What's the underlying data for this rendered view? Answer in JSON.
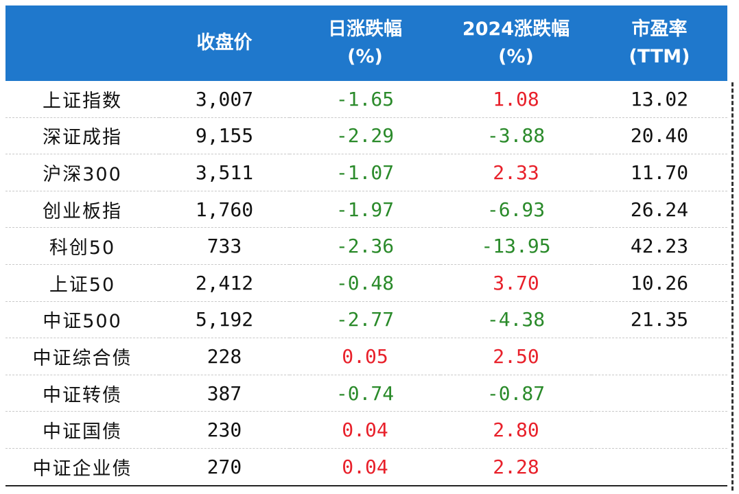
{
  "table": {
    "headers": [
      {
        "line1": "",
        "line2": ""
      },
      {
        "line1": "收盘价",
        "line2": ""
      },
      {
        "line1": "日涨跌幅",
        "line2": "(%)"
      },
      {
        "line1": "2024涨跌幅",
        "line2": "(%)"
      },
      {
        "line1": "市盈率",
        "line2": "(TTM)"
      }
    ],
    "rows": [
      {
        "name": "上证指数",
        "close": "3,007",
        "day_change": "-1.65",
        "ytd_change": "1.08",
        "pe": "13.02"
      },
      {
        "name": "深证成指",
        "close": "9,155",
        "day_change": "-2.29",
        "ytd_change": "-3.88",
        "pe": "20.40"
      },
      {
        "name": "沪深300",
        "close": "3,511",
        "day_change": "-1.07",
        "ytd_change": "2.33",
        "pe": "11.70"
      },
      {
        "name": "创业板指",
        "close": "1,760",
        "day_change": "-1.97",
        "ytd_change": "-6.93",
        "pe": "26.24"
      },
      {
        "name": "科创50",
        "close": "733",
        "day_change": "-2.36",
        "ytd_change": "-13.95",
        "pe": "42.23"
      },
      {
        "name": "上证50",
        "close": "2,412",
        "day_change": "-0.48",
        "ytd_change": "3.70",
        "pe": "10.26"
      },
      {
        "name": "中证500",
        "close": "5,192",
        "day_change": "-2.77",
        "ytd_change": "-4.38",
        "pe": "21.35"
      },
      {
        "name": "中证综合债",
        "close": "228",
        "day_change": "0.05",
        "ytd_change": "2.50",
        "pe": ""
      },
      {
        "name": "中证转债",
        "close": "387",
        "day_change": "-0.74",
        "ytd_change": "-0.87",
        "pe": ""
      },
      {
        "name": "中证国债",
        "close": "230",
        "day_change": "0.04",
        "ytd_change": "2.80",
        "pe": ""
      },
      {
        "name": "中证企业债",
        "close": "270",
        "day_change": "0.04",
        "ytd_change": "2.28",
        "pe": ""
      }
    ]
  },
  "colors": {
    "header_bg": "#1f78cc",
    "positive": "#e8202a",
    "negative": "#2a8a2a",
    "neutral": "#111111"
  }
}
